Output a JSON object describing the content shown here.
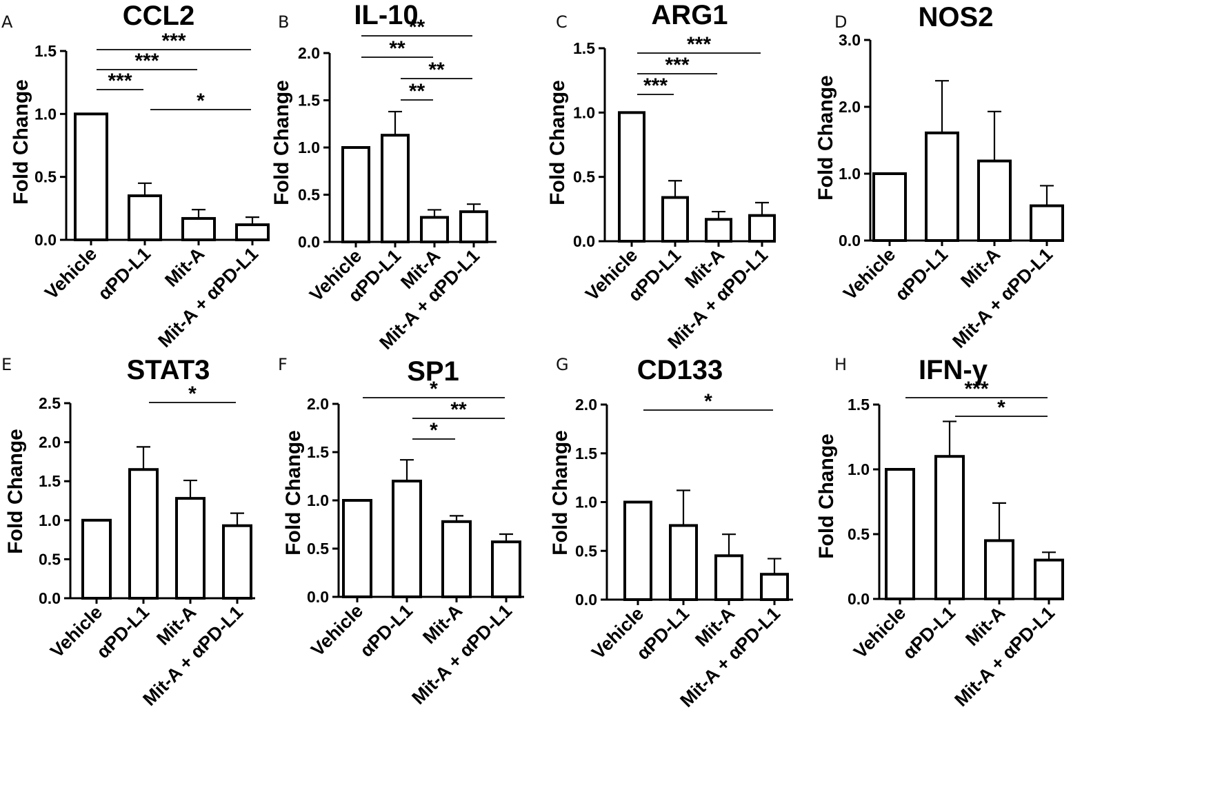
{
  "figure": {
    "background": "#ffffff",
    "bar_fill": "#ffffff",
    "stroke": "#000000"
  },
  "chart_data": [
    {
      "panel": "A",
      "type": "bar",
      "title": "CCL2",
      "ylabel": "Fold Change",
      "categories": [
        "Vehicle",
        "αPD-L1",
        "Mit-A",
        "Mit-A + αPD-L1"
      ],
      "values": [
        1.0,
        0.35,
        0.17,
        0.12
      ],
      "errors": [
        0,
        0.1,
        0.07,
        0.06
      ],
      "ylim": [
        0,
        1.5
      ],
      "yticks": [
        "0.0",
        "0.5",
        "1.0",
        "1.5"
      ],
      "significance": [
        {
          "from": 0,
          "to": 3,
          "label": "***"
        },
        {
          "from": 0,
          "to": 2,
          "label": "***"
        },
        {
          "from": 0,
          "to": 1,
          "label": "***"
        },
        {
          "from": 1,
          "to": 3,
          "label": "*"
        }
      ]
    },
    {
      "panel": "B",
      "type": "bar",
      "title": "IL-10",
      "ylabel": "Fold Change",
      "categories": [
        "Vehicle",
        "αPD-L1",
        "Mit-A",
        "Mit-A + αPD-L1"
      ],
      "values": [
        1.0,
        1.13,
        0.26,
        0.32
      ],
      "errors": [
        0,
        0.25,
        0.08,
        0.08
      ],
      "ylim": [
        0,
        2.0
      ],
      "yticks": [
        "0.0",
        "0.5",
        "1.0",
        "1.5",
        "2.0"
      ],
      "significance": [
        {
          "from": 0,
          "to": 3,
          "label": "**"
        },
        {
          "from": 0,
          "to": 2,
          "label": "**"
        },
        {
          "from": 1,
          "to": 3,
          "label": "**"
        },
        {
          "from": 1,
          "to": 2,
          "label": "**"
        }
      ]
    },
    {
      "panel": "C",
      "type": "bar",
      "title": "ARG1",
      "ylabel": "Fold Change",
      "categories": [
        "Vehicle",
        "αPD-L1",
        "Mit-A",
        "Mit-A + αPD-L1"
      ],
      "values": [
        1.0,
        0.34,
        0.17,
        0.2
      ],
      "errors": [
        0,
        0.13,
        0.06,
        0.1
      ],
      "ylim": [
        0,
        1.5
      ],
      "yticks": [
        "0.0",
        "0.5",
        "1.0",
        "1.5"
      ],
      "significance": [
        {
          "from": 0,
          "to": 3,
          "label": "***"
        },
        {
          "from": 0,
          "to": 2,
          "label": "***"
        },
        {
          "from": 0,
          "to": 1,
          "label": "***"
        }
      ]
    },
    {
      "panel": "D",
      "type": "bar",
      "title": "NOS2",
      "ylabel": "Fold Change",
      "categories": [
        "Vehicle",
        "αPD-L1",
        "Mit-A",
        "Mit-A + αPD-L1"
      ],
      "values": [
        1.0,
        1.61,
        1.19,
        0.52
      ],
      "errors": [
        0,
        0.78,
        0.74,
        0.3
      ],
      "ylim": [
        0,
        3.0
      ],
      "yticks": [
        "0.0",
        "1.0",
        "2.0",
        "3.0"
      ],
      "significance": []
    },
    {
      "panel": "E",
      "type": "bar",
      "title": "STAT3",
      "ylabel": "Fold Change",
      "categories": [
        "Vehicle",
        "αPD-L1",
        "Mit-A",
        "Mit-A + αPD-L1"
      ],
      "values": [
        1.0,
        1.65,
        1.28,
        0.93
      ],
      "errors": [
        0,
        0.29,
        0.23,
        0.16
      ],
      "ylim": [
        0,
        2.5
      ],
      "yticks": [
        "0.0",
        "0.5",
        "1.0",
        "1.5",
        "2.0",
        "2.5"
      ],
      "significance": [
        {
          "from": 1,
          "to": 3,
          "label": "*"
        }
      ]
    },
    {
      "panel": "F",
      "type": "bar",
      "title": "SP1",
      "ylabel": "Fold Change",
      "categories": [
        "Vehicle",
        "αPD-L1",
        "Mit-A",
        "Mit-A + αPD-L1"
      ],
      "values": [
        1.0,
        1.2,
        0.78,
        0.57
      ],
      "errors": [
        0,
        0.22,
        0.06,
        0.08
      ],
      "ylim": [
        0,
        2.0
      ],
      "yticks": [
        "0.0",
        "0.5",
        "1.0",
        "1.5",
        "2.0"
      ],
      "significance": [
        {
          "from": 0,
          "to": 3,
          "label": "*"
        },
        {
          "from": 1,
          "to": 3,
          "label": "**"
        },
        {
          "from": 1,
          "to": 2,
          "label": "*"
        }
      ]
    },
    {
      "panel": "G",
      "type": "bar",
      "title": "CD133",
      "ylabel": "Fold Change",
      "categories": [
        "Vehicle",
        "αPD-L1",
        "Mit-A",
        "Mit-A + αPD-L1"
      ],
      "values": [
        1.0,
        0.76,
        0.45,
        0.26
      ],
      "errors": [
        0,
        0.36,
        0.22,
        0.16
      ],
      "ylim": [
        0,
        2.0
      ],
      "yticks": [
        "0.0",
        "0.5",
        "1.0",
        "1.5",
        "2.0"
      ],
      "significance": [
        {
          "from": 0,
          "to": 3,
          "label": "*"
        }
      ]
    },
    {
      "panel": "H",
      "type": "bar",
      "title": "IFN-γ",
      "ylabel": "Fold Change",
      "categories": [
        "Vehicle",
        "αPD-L1",
        "Mit-A",
        "Mit-A + αPD-L1"
      ],
      "values": [
        1.0,
        1.1,
        0.45,
        0.3
      ],
      "errors": [
        0,
        0.27,
        0.29,
        0.06
      ],
      "ylim": [
        0,
        1.5
      ],
      "yticks": [
        "0.0",
        "0.5",
        "1.0",
        "1.5"
      ],
      "significance": [
        {
          "from": 0,
          "to": 3,
          "label": "***"
        },
        {
          "from": 1,
          "to": 3,
          "label": "*"
        }
      ]
    }
  ]
}
